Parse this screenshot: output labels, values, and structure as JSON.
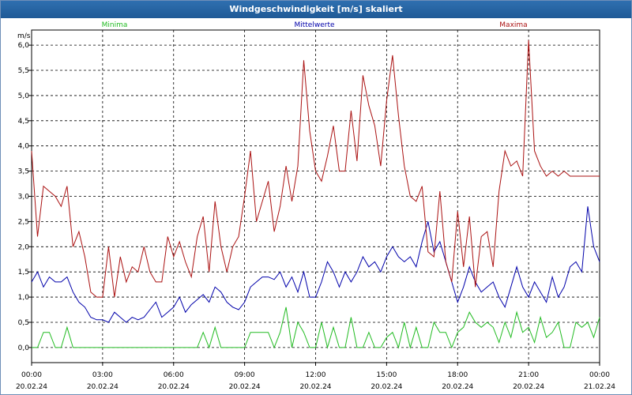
{
  "window": {
    "title": "Windgeschwindigkeit [m/s] skaliert"
  },
  "chart_data": {
    "type": "line",
    "title": "Windgeschwindigkeit [m/s] skaliert",
    "ylabel": "m/s",
    "xlabel": "",
    "ylim": [
      -0.3,
      6.3
    ],
    "xlim": [
      0,
      24
    ],
    "grid": true,
    "legend_placement": "top",
    "y_ticks": [
      "0,0",
      "0,5",
      "1,0",
      "1,5",
      "2,0",
      "2,5",
      "3,0",
      "3,5",
      "4,0",
      "4,5",
      "5,0",
      "5,5",
      "6,0"
    ],
    "y_tick_values": [
      0,
      0.5,
      1,
      1.5,
      2,
      2.5,
      3,
      3.5,
      4,
      4.5,
      5,
      5.5,
      6
    ],
    "x_ticks": [
      {
        "time": "00:00",
        "date": "20.02.24"
      },
      {
        "time": "03:00",
        "date": "20.02.24"
      },
      {
        "time": "06:00",
        "date": "20.02.24"
      },
      {
        "time": "09:00",
        "date": "20.02.24"
      },
      {
        "time": "12:00",
        "date": "20.02.24"
      },
      {
        "time": "15:00",
        "date": "20.02.24"
      },
      {
        "time": "18:00",
        "date": "20.02.24"
      },
      {
        "time": "21:00",
        "date": "20.02.24"
      },
      {
        "time": "00:00",
        "date": "21.02.24"
      }
    ],
    "x_tick_hours": [
      0,
      3,
      6,
      9,
      12,
      15,
      18,
      21,
      24
    ],
    "series": [
      {
        "name": "Minima",
        "color": "#22bb22",
        "x": [
          0,
          0.25,
          0.5,
          0.75,
          1,
          1.25,
          1.5,
          1.75,
          2,
          2.5,
          3,
          4,
          5,
          6,
          7,
          7.25,
          7.5,
          7.75,
          8,
          9,
          9.25,
          9.5,
          10,
          10.25,
          10.5,
          10.75,
          11,
          11.25,
          11.5,
          11.75,
          12,
          12.25,
          12.5,
          12.75,
          13,
          13.25,
          13.5,
          13.75,
          14,
          14.25,
          14.5,
          14.75,
          15,
          15.25,
          15.5,
          15.75,
          16,
          16.25,
          16.5,
          16.75,
          17,
          17.25,
          17.5,
          17.75,
          18,
          18.25,
          18.5,
          18.75,
          19,
          19.25,
          19.5,
          19.75,
          20,
          20.25,
          20.5,
          20.75,
          21,
          21.25,
          21.5,
          21.75,
          22,
          22.25,
          22.5,
          22.75,
          23,
          23.25,
          23.5,
          23.75,
          24
        ],
        "values": [
          0,
          0,
          0.3,
          0.3,
          0,
          0,
          0.4,
          0,
          0,
          0,
          0,
          0,
          0,
          0,
          0,
          0.3,
          0,
          0.4,
          0,
          0,
          0.3,
          0.3,
          0.3,
          0,
          0.3,
          0.8,
          0,
          0.5,
          0.3,
          0,
          0,
          0.5,
          0,
          0.4,
          0,
          0,
          0.6,
          0,
          0,
          0.3,
          0,
          0,
          0.2,
          0.3,
          0,
          0.5,
          0,
          0.4,
          0,
          0,
          0.5,
          0.3,
          0.3,
          0,
          0.3,
          0.4,
          0.7,
          0.5,
          0.4,
          0.5,
          0.4,
          0.1,
          0.5,
          0.2,
          0.7,
          0.3,
          0.4,
          0.1,
          0.6,
          0.2,
          0.3,
          0.5,
          0,
          0,
          0.5,
          0.4,
          0.5,
          0.2,
          0.6
        ]
      },
      {
        "name": "Mittelwerte",
        "color": "#0000aa",
        "x": [
          0,
          0.25,
          0.5,
          0.75,
          1,
          1.25,
          1.5,
          1.75,
          2,
          2.25,
          2.5,
          2.75,
          3,
          3.25,
          3.5,
          3.75,
          4,
          4.25,
          4.5,
          4.75,
          5,
          5.25,
          5.5,
          5.75,
          6,
          6.25,
          6.5,
          6.75,
          7,
          7.25,
          7.5,
          7.75,
          8,
          8.25,
          8.5,
          8.75,
          9,
          9.25,
          9.5,
          9.75,
          10,
          10.25,
          10.5,
          10.75,
          11,
          11.25,
          11.5,
          11.75,
          12,
          12.25,
          12.5,
          12.75,
          13,
          13.25,
          13.5,
          13.75,
          14,
          14.25,
          14.5,
          14.75,
          15,
          15.25,
          15.5,
          15.75,
          16,
          16.25,
          16.5,
          16.75,
          17,
          17.25,
          17.5,
          17.75,
          18,
          18.25,
          18.5,
          18.75,
          19,
          19.25,
          19.5,
          19.75,
          20,
          20.25,
          20.5,
          20.75,
          21,
          21.25,
          21.5,
          21.75,
          22,
          22.25,
          22.5,
          22.75,
          23,
          23.25,
          23.5,
          23.75,
          24
        ],
        "values": [
          1.3,
          1.5,
          1.2,
          1.4,
          1.3,
          1.3,
          1.4,
          1.1,
          0.9,
          0.8,
          0.6,
          0.55,
          0.55,
          0.5,
          0.7,
          0.6,
          0.5,
          0.6,
          0.55,
          0.6,
          0.75,
          0.9,
          0.6,
          0.7,
          0.8,
          1.0,
          0.7,
          0.85,
          0.95,
          1.05,
          0.9,
          1.2,
          1.1,
          0.9,
          0.8,
          0.75,
          0.9,
          1.2,
          1.3,
          1.4,
          1.4,
          1.35,
          1.5,
          1.2,
          1.4,
          1.1,
          1.5,
          1.0,
          1.0,
          1.3,
          1.7,
          1.5,
          1.2,
          1.5,
          1.3,
          1.5,
          1.8,
          1.6,
          1.7,
          1.5,
          1.8,
          2.0,
          1.8,
          1.7,
          1.8,
          1.6,
          2.1,
          2.5,
          1.9,
          2.1,
          1.7,
          1.3,
          0.9,
          1.2,
          1.6,
          1.3,
          1.1,
          1.2,
          1.3,
          1.0,
          0.8,
          1.2,
          1.6,
          1.2,
          1.0,
          1.3,
          1.1,
          0.9,
          1.4,
          1.0,
          1.2,
          1.6,
          1.7,
          1.5,
          2.8,
          2.0,
          1.7
        ]
      },
      {
        "name": "Maxima",
        "color": "#aa1111",
        "x": [
          0,
          0.25,
          0.5,
          0.75,
          1,
          1.25,
          1.5,
          1.75,
          2,
          2.25,
          2.5,
          2.75,
          3,
          3.25,
          3.5,
          3.75,
          4,
          4.25,
          4.5,
          4.75,
          5,
          5.25,
          5.5,
          5.75,
          6,
          6.25,
          6.5,
          6.75,
          7,
          7.25,
          7.5,
          7.75,
          8,
          8.25,
          8.5,
          8.75,
          9,
          9.25,
          9.5,
          9.75,
          10,
          10.25,
          10.5,
          10.75,
          11,
          11.25,
          11.5,
          11.75,
          12,
          12.25,
          12.5,
          12.75,
          13,
          13.25,
          13.5,
          13.75,
          14,
          14.25,
          14.5,
          14.75,
          15,
          15.25,
          15.5,
          15.75,
          16,
          16.25,
          16.5,
          16.75,
          17,
          17.25,
          17.5,
          17.75,
          18,
          18.25,
          18.5,
          18.75,
          19,
          19.25,
          19.5,
          19.75,
          20,
          20.25,
          20.5,
          20.75,
          21,
          21.25,
          21.5,
          21.75,
          22,
          22.25,
          22.5,
          22.75,
          23,
          23.25,
          23.5,
          23.75,
          24
        ],
        "values": [
          3.9,
          2.2,
          3.2,
          3.1,
          3.0,
          2.8,
          3.2,
          2.0,
          2.3,
          1.8,
          1.1,
          1.0,
          1.0,
          2.0,
          1.0,
          1.8,
          1.3,
          1.6,
          1.5,
          2.0,
          1.5,
          1.3,
          1.3,
          2.2,
          1.8,
          2.1,
          1.7,
          1.4,
          2.2,
          2.6,
          1.5,
          2.9,
          2.0,
          1.5,
          2.0,
          2.2,
          3.0,
          3.9,
          2.5,
          2.9,
          3.3,
          2.3,
          2.8,
          3.6,
          2.9,
          3.6,
          5.7,
          4.3,
          3.5,
          3.3,
          3.8,
          4.4,
          3.5,
          3.5,
          4.7,
          3.7,
          5.4,
          4.8,
          4.4,
          3.6,
          4.9,
          5.8,
          4.6,
          3.6,
          3.0,
          2.9,
          3.2,
          1.9,
          1.8,
          3.1,
          1.7,
          1.3,
          2.7,
          1.6,
          2.6,
          1.2,
          2.2,
          2.3,
          1.6,
          3.1,
          3.9,
          3.6,
          3.7,
          3.4,
          6.1,
          3.9,
          3.6,
          3.4,
          3.5,
          3.4,
          3.5,
          3.4,
          3.4,
          3.4,
          3.4,
          3.4,
          3.4
        ]
      }
    ]
  }
}
